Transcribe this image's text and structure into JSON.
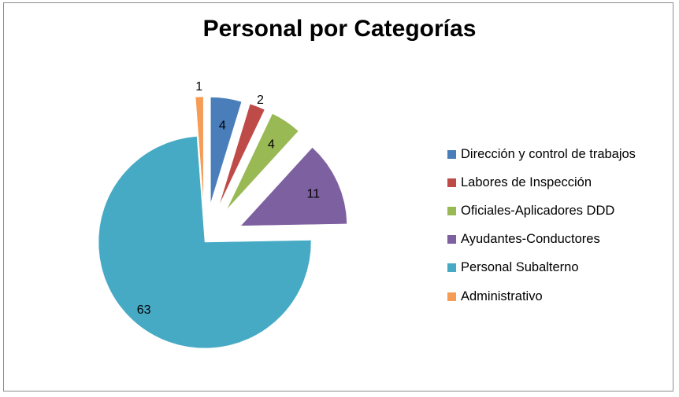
{
  "chart_data": {
    "type": "pie",
    "title": "Personal por Categorías",
    "categories": [
      "Dirección y control de trabajos",
      "Labores de Inspección",
      "Oficiales-Aplicadores DDD",
      "Ayudantes-Conductores",
      "Personal Subalterno",
      "Administrativo"
    ],
    "values": [
      4,
      2,
      4,
      11,
      63,
      1
    ],
    "colors": [
      "#4a7ebb",
      "#be4b48",
      "#98b954",
      "#7d60a0",
      "#46aac4",
      "#f59d56"
    ],
    "exploded": [
      true,
      true,
      true,
      true,
      false,
      true
    ],
    "start_angle_deg": 0,
    "direction": "clockwise",
    "legend_position": "right",
    "data_labels": true
  }
}
